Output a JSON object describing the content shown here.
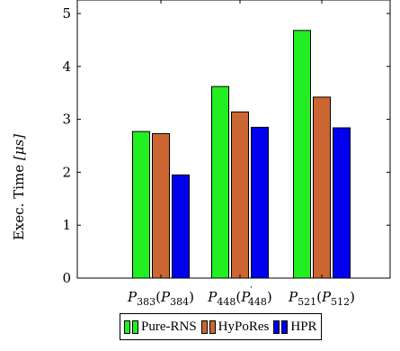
{
  "chart_data": {
    "type": "bar",
    "categories": [
      {
        "base": "P",
        "sub": "383",
        "paren_base": "P",
        "paren_sub": "384",
        "prime": false
      },
      {
        "base": "P",
        "sub": "448",
        "paren_base": "P",
        "paren_sub": "448",
        "prime": true
      },
      {
        "base": "P",
        "sub": "521",
        "paren_base": "P",
        "paren_sub": "512",
        "prime": false
      }
    ],
    "series": [
      {
        "name": "Pure-RNS",
        "values": [
          2.77,
          3.62,
          4.68
        ],
        "color": "#22ee22"
      },
      {
        "name": "HyPoRes",
        "values": [
          2.73,
          3.14,
          3.42
        ],
        "color": "#cc6633"
      },
      {
        "name": "HPR",
        "values": [
          1.95,
          2.85,
          2.84
        ],
        "color": "#0000ee"
      }
    ],
    "ylabel_text": "Exec. Time ",
    "ylabel_unit": "[μs]",
    "ylim": [
      0,
      5.2
    ],
    "yticks": [
      "0",
      "1",
      "2",
      "3",
      "4",
      "5"
    ],
    "grid": false,
    "legend_position": "bottom"
  }
}
